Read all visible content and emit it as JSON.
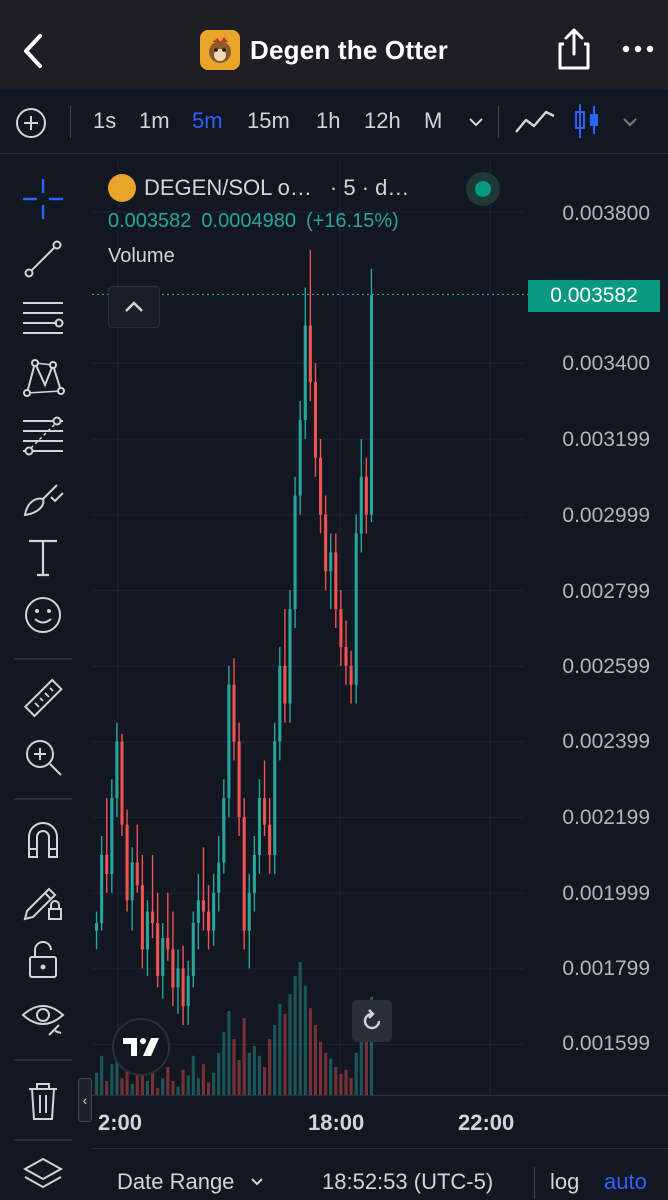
{
  "header": {
    "title": "Degen the Otter",
    "icons": [
      "back-chevron-icon",
      "otter-avatar-icon",
      "share-icon",
      "more-dots-icon"
    ]
  },
  "toolbar": {
    "timeframes": [
      "1s",
      "1m",
      "5m",
      "15m",
      "1h",
      "12h",
      "M"
    ],
    "active_timeframe": "5m",
    "chart_types": [
      "line-chart-icon",
      "candlestick-icon"
    ]
  },
  "tools": [
    "crosshair-icon",
    "trend-line-icon",
    "horizontal-lines-icon",
    "pattern-icon",
    "fib-retracement-icon",
    "brush-icon",
    "text-icon",
    "emoji-icon",
    "ruler-icon",
    "zoom-in-icon",
    "magnet-icon",
    "lock-drawing-icon",
    "unlock-icon",
    "eye-icon",
    "trash-icon",
    "layers-icon"
  ],
  "legend": {
    "symbol": "DEGEN/SOL o…",
    "interval": "· 5 · d…",
    "last": "0.003582",
    "change": "0.0004980",
    "change_pct": "(+16.15%)",
    "volume_label": "Volume"
  },
  "price_axis": {
    "labels": [
      "0.003800",
      "0.003400",
      "0.003199",
      "0.002999",
      "0.002799",
      "0.002599",
      "0.002399",
      "0.002199",
      "0.001999",
      "0.001799",
      "0.001599"
    ],
    "current_price": "0.003582"
  },
  "time_axis": {
    "labels": [
      "2:00",
      "18:00",
      "22:00"
    ]
  },
  "bottom_bar": {
    "date_range": "Date Range",
    "clock": "18:52:53 (UTC-5)",
    "log": "log",
    "auto": "auto"
  },
  "colors": {
    "up": "#26a69a",
    "down": "#ef5350",
    "accent": "#2962ff",
    "background": "#131722"
  },
  "chart_data": {
    "type": "candlestick",
    "symbol": "DEGEN/SOL",
    "interval": "5",
    "ylim": [
      0.0015,
      0.0039
    ],
    "candles": [
      [
        0.0019,
        0.00195,
        0.00185,
        0.00192
      ],
      [
        0.00192,
        0.00215,
        0.0019,
        0.0021
      ],
      [
        0.0021,
        0.00225,
        0.002,
        0.00205
      ],
      [
        0.00205,
        0.0023,
        0.002,
        0.00225
      ],
      [
        0.00225,
        0.00245,
        0.0022,
        0.0024
      ],
      [
        0.0024,
        0.00242,
        0.00215,
        0.00218
      ],
      [
        0.00218,
        0.00222,
        0.00195,
        0.00198
      ],
      [
        0.00198,
        0.00212,
        0.0019,
        0.00208
      ],
      [
        0.00208,
        0.00218,
        0.002,
        0.00202
      ],
      [
        0.00202,
        0.0021,
        0.0018,
        0.00185
      ],
      [
        0.00185,
        0.00198,
        0.00178,
        0.00195
      ],
      [
        0.00195,
        0.0021,
        0.00188,
        0.00192
      ],
      [
        0.00192,
        0.002,
        0.00175,
        0.00178
      ],
      [
        0.00178,
        0.00192,
        0.00172,
        0.00188
      ],
      [
        0.00188,
        0.002,
        0.00182,
        0.00185
      ],
      [
        0.00185,
        0.00195,
        0.0017,
        0.00175
      ],
      [
        0.00175,
        0.00185,
        0.00168,
        0.0018
      ],
      [
        0.0018,
        0.00186,
        0.00165,
        0.0017
      ],
      [
        0.0017,
        0.00182,
        0.00165,
        0.00178
      ],
      [
        0.00178,
        0.00195,
        0.00175,
        0.00192
      ],
      [
        0.00192,
        0.00205,
        0.00185,
        0.00198
      ],
      [
        0.00198,
        0.00212,
        0.0019,
        0.00195
      ],
      [
        0.00195,
        0.00202,
        0.00185,
        0.0019
      ],
      [
        0.0019,
        0.00205,
        0.00186,
        0.002
      ],
      [
        0.002,
        0.00215,
        0.00195,
        0.00208
      ],
      [
        0.00208,
        0.0023,
        0.00205,
        0.00225
      ],
      [
        0.00225,
        0.0026,
        0.0022,
        0.00255
      ],
      [
        0.00255,
        0.00262,
        0.00235,
        0.0024
      ],
      [
        0.0024,
        0.00245,
        0.00215,
        0.0022
      ],
      [
        0.0022,
        0.00225,
        0.00185,
        0.0019
      ],
      [
        0.0019,
        0.00205,
        0.0018,
        0.002
      ],
      [
        0.002,
        0.00215,
        0.00195,
        0.0021
      ],
      [
        0.0021,
        0.0023,
        0.00205,
        0.00225
      ],
      [
        0.00225,
        0.00235,
        0.00215,
        0.00218
      ],
      [
        0.00218,
        0.00225,
        0.00205,
        0.0021
      ],
      [
        0.0021,
        0.00245,
        0.00205,
        0.0024
      ],
      [
        0.0024,
        0.00265,
        0.00235,
        0.0026
      ],
      [
        0.0026,
        0.00275,
        0.00245,
        0.0025
      ],
      [
        0.0025,
        0.0028,
        0.00245,
        0.00275
      ],
      [
        0.00275,
        0.0031,
        0.0027,
        0.00305
      ],
      [
        0.00305,
        0.0033,
        0.003,
        0.00325
      ],
      [
        0.00325,
        0.0036,
        0.0032,
        0.0035
      ],
      [
        0.0035,
        0.0037,
        0.0033,
        0.00335
      ],
      [
        0.00335,
        0.0034,
        0.0031,
        0.00315
      ],
      [
        0.00315,
        0.0032,
        0.00295,
        0.003
      ],
      [
        0.003,
        0.00305,
        0.0028,
        0.00285
      ],
      [
        0.00285,
        0.00295,
        0.00275,
        0.0029
      ],
      [
        0.0029,
        0.00295,
        0.0027,
        0.00275
      ],
      [
        0.00275,
        0.0028,
        0.0026,
        0.00265
      ],
      [
        0.00265,
        0.00272,
        0.00255,
        0.0026
      ],
      [
        0.0026,
        0.00264,
        0.0025,
        0.00255
      ],
      [
        0.00255,
        0.003,
        0.0025,
        0.00295
      ],
      [
        0.00295,
        0.0032,
        0.0029,
        0.0031
      ],
      [
        0.0031,
        0.00315,
        0.00295,
        0.003
      ],
      [
        0.003,
        0.00365,
        0.00298,
        0.00358
      ]
    ],
    "volume": [
      0.16,
      0.28,
      0.1,
      0.22,
      0.35,
      0.12,
      0.2,
      0.08,
      0.3,
      0.15,
      0.1,
      0.25,
      0.05,
      0.12,
      0.2,
      0.1,
      0.06,
      0.18,
      0.14,
      0.28,
      0.12,
      0.22,
      0.09,
      0.16,
      0.3,
      0.45,
      0.6,
      0.4,
      0.25,
      0.55,
      0.3,
      0.35,
      0.28,
      0.2,
      0.4,
      0.5,
      0.65,
      0.58,
      0.72,
      0.85,
      0.95,
      0.78,
      0.62,
      0.5,
      0.38,
      0.3,
      0.26,
      0.2,
      0.15,
      0.18,
      0.12,
      0.3,
      0.55,
      0.4,
      0.7
    ]
  }
}
